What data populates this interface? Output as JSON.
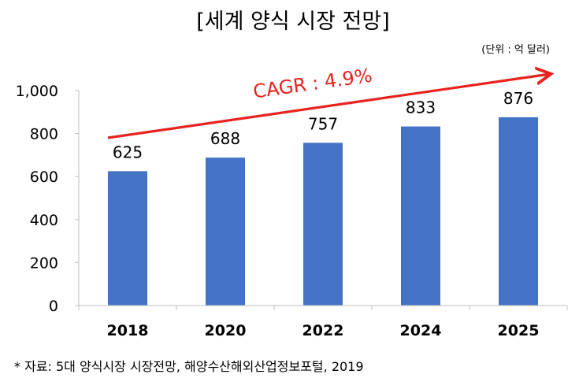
{
  "title": "[세계 양식 시장 전망]",
  "unit_note": "(단위 : 억 달러)",
  "source_note": "* 자료: 5대 양식시장 시장전망, 해양수산해외산업정보포털, 2019",
  "annotation": {
    "text": "CAGR : 4.9%",
    "color": "#e8231f"
  },
  "colors": {
    "bar": "#4472c4",
    "axis": "#bfbfbf",
    "text": "#000000"
  },
  "chart_data": {
    "type": "bar",
    "title": "[세계 양식 시장 전망]",
    "categories": [
      "2018",
      "2020",
      "2022",
      "2024",
      "2025"
    ],
    "values": [
      625,
      688,
      757,
      833,
      876
    ],
    "data_labels": [
      "625",
      "688",
      "757",
      "833",
      "876"
    ],
    "ylim": [
      0,
      1000
    ],
    "yticks": [
      0,
      200,
      400,
      600,
      800,
      1000
    ],
    "ytick_labels": [
      "0",
      "200",
      "400",
      "600",
      "800",
      "1,000"
    ],
    "xlabel": "",
    "ylabel": "",
    "grid": false,
    "legend": "none",
    "annotations": [
      {
        "text": "CAGR : 4.9%",
        "type": "trend-arrow"
      }
    ]
  }
}
